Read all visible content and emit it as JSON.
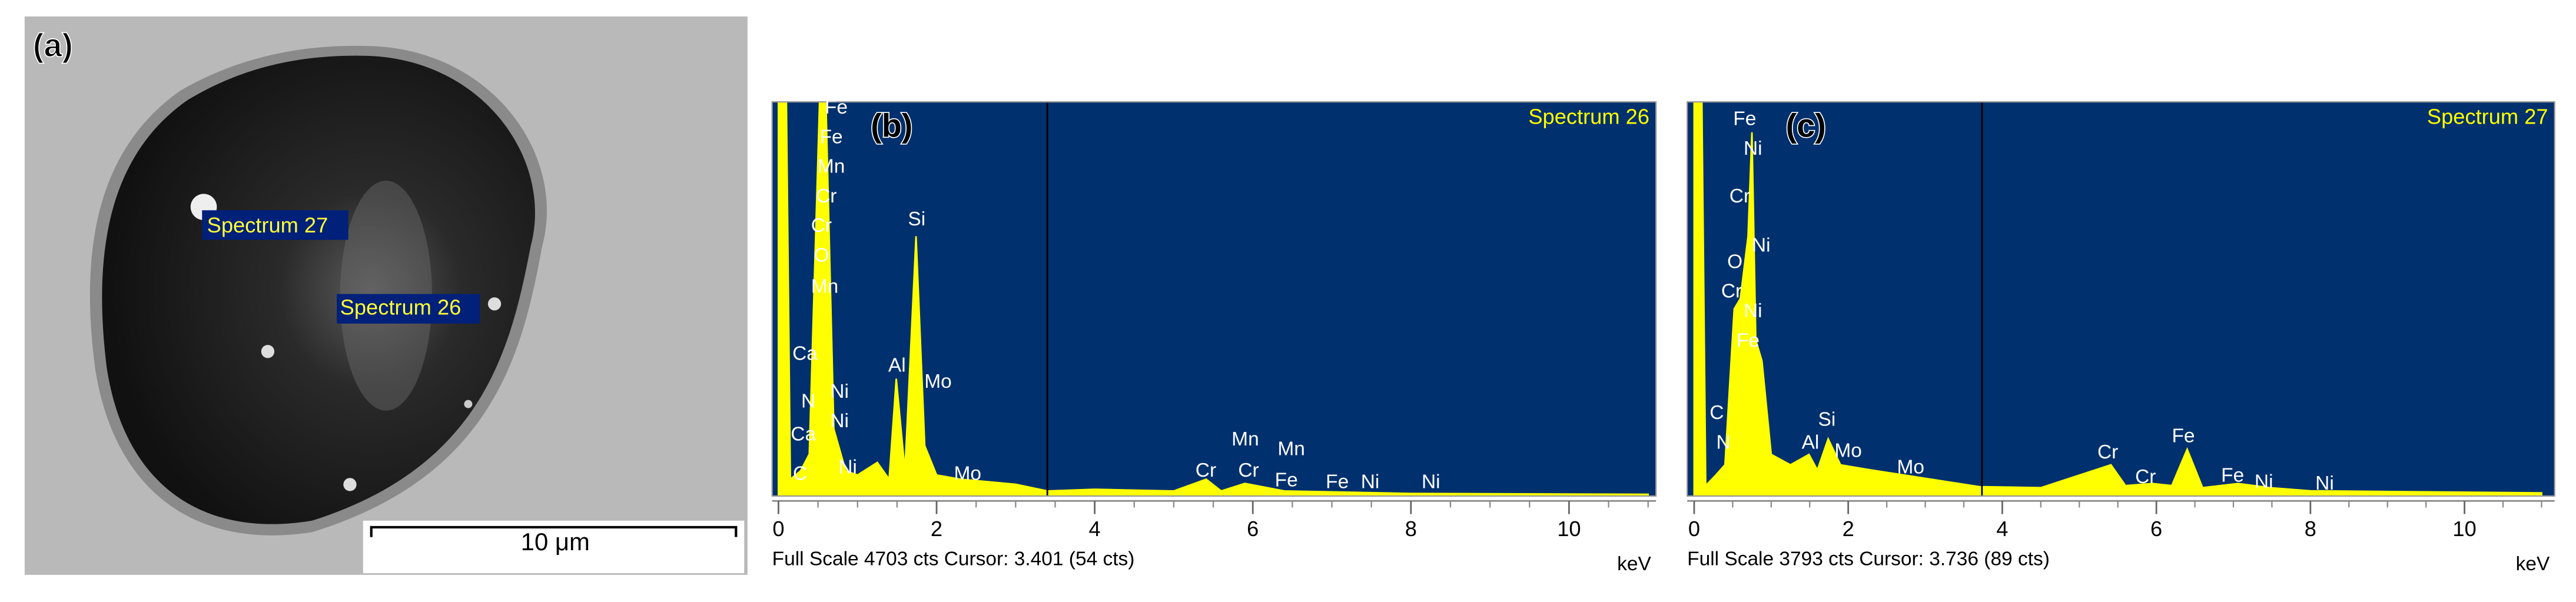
{
  "panel_a": {
    "label": "(a)",
    "markers": [
      "Spectrum 27",
      "Spectrum 26"
    ],
    "scale_bar": "10 μm"
  },
  "chart_data": [
    {
      "type": "area",
      "label": "(b)",
      "title": "Spectrum 26",
      "footer": "Full Scale 4703 cts Cursor: 3.401  (54 cts)",
      "cursor": 3.401,
      "xlabel": "keV",
      "color": "#ffff00",
      "background": "#00306e",
      "xlim": [
        -0.08,
        11.1
      ],
      "xticks": [
        0,
        2,
        4,
        6,
        8,
        10
      ],
      "ylim": [
        0,
        4703
      ],
      "x": [
        0.0,
        0.1,
        0.15,
        0.28,
        0.39,
        0.52,
        0.6,
        0.7,
        0.85,
        1.0,
        1.25,
        1.4,
        1.49,
        1.6,
        1.74,
        1.85,
        2.0,
        2.3,
        3.0,
        3.4,
        4.0,
        5.0,
        5.41,
        5.6,
        5.9,
        6.4,
        8.0,
        11.0
      ],
      "values": [
        4703,
        4703,
        200,
        300,
        500,
        4703,
        4703,
        800,
        300,
        250,
        400,
        200,
        1400,
        300,
        3100,
        600,
        250,
        200,
        140,
        60,
        80,
        60,
        200,
        60,
        150,
        60,
        30,
        20
      ],
      "annotations": [
        "Fe",
        "Fe",
        "Mn",
        "Cr",
        "Cr",
        "O",
        "Mn",
        "Ca",
        "N",
        "Ni",
        "Ni",
        "Ca",
        "Ni",
        "C",
        "Si",
        "Al",
        "Mo",
        "Mo",
        "Cr",
        "Mn",
        "Cr",
        "Mn",
        "Fe",
        "Fe",
        "Ni",
        "Ni"
      ]
    },
    {
      "type": "area",
      "label": "(c)",
      "title": "Spectrum 27",
      "footer": "Full Scale 3793 cts Cursor: 3.736  (89 cts)",
      "cursor": 3.736,
      "xlabel": "keV",
      "color": "#ffff00",
      "background": "#00306e",
      "xlim": [
        -0.09,
        11.17
      ],
      "xticks": [
        0,
        2,
        4,
        6,
        8,
        10
      ],
      "ylim": [
        0,
        3793
      ],
      "x": [
        0.0,
        0.1,
        0.15,
        0.28,
        0.4,
        0.52,
        0.6,
        0.7,
        0.75,
        0.8,
        0.88,
        1.0,
        1.25,
        1.49,
        1.6,
        1.74,
        1.9,
        2.3,
        3.0,
        3.7,
        4.5,
        5.41,
        5.6,
        5.95,
        6.2,
        6.4,
        6.6,
        7.06,
        7.47,
        8.0,
        11.0
      ],
      "values": [
        3793,
        3793,
        100,
        200,
        300,
        1800,
        1900,
        2500,
        3500,
        1500,
        1300,
        400,
        300,
        400,
        250,
        550,
        300,
        250,
        170,
        90,
        80,
        300,
        100,
        120,
        100,
        450,
        80,
        120,
        80,
        50,
        30
      ],
      "annotations": [
        "Fe",
        "Ni",
        "Cr",
        "Ni",
        "O",
        "Cr",
        "Ni",
        "Fe",
        "C",
        "N",
        "Al",
        "Si",
        "Mo",
        "Mo",
        "Cr",
        "Fe",
        "Cr",
        "Fe",
        "Ni",
        "Ni"
      ]
    }
  ]
}
